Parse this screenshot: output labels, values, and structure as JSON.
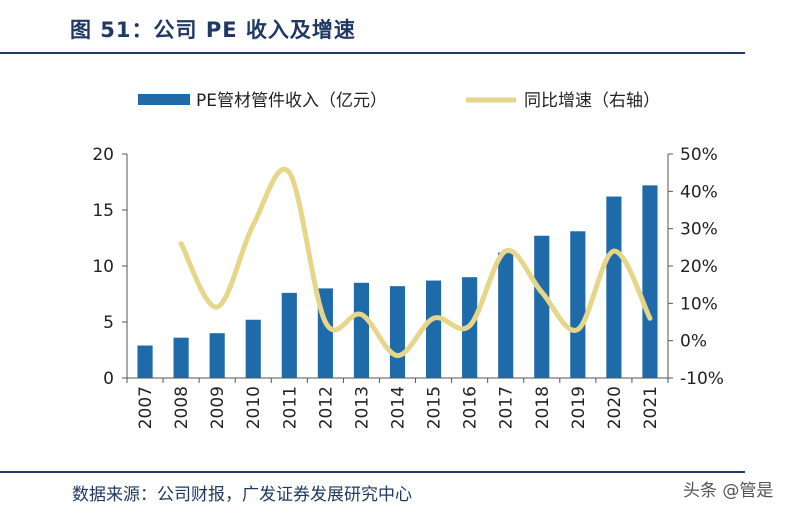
{
  "title": "图 51：公司 PE 收入及增速",
  "source": "数据来源：公司财报，广发证券发展研究中心",
  "watermark": "头条 @管是",
  "colors": {
    "bar": "#1f6aa8",
    "line": "#e5d68a",
    "header": "#1f3864"
  },
  "chart_data": {
    "type": "bar",
    "categories": [
      "2007",
      "2008",
      "2009",
      "2010",
      "2011",
      "2012",
      "2013",
      "2014",
      "2015",
      "2016",
      "2017",
      "2018",
      "2019",
      "2020",
      "2021"
    ],
    "series": [
      {
        "name": "PE管材管件收入（亿元）",
        "type": "bar",
        "axis": "left",
        "values": [
          2.9,
          3.6,
          4.0,
          5.2,
          7.6,
          8.0,
          8.5,
          8.2,
          8.7,
          9.0,
          11.2,
          12.7,
          13.1,
          16.2,
          17.2
        ]
      },
      {
        "name": "同比增速（右轴）",
        "type": "line",
        "axis": "right",
        "values": [
          null,
          26,
          9,
          31,
          45,
          5,
          7,
          -4,
          6,
          4,
          24,
          13,
          3,
          24,
          6
        ]
      }
    ],
    "y_left": {
      "min": 0,
      "max": 20,
      "ticks": [
        "0",
        "5",
        "10",
        "15",
        "20"
      ]
    },
    "y_right": {
      "min": -10,
      "max": 50,
      "ticks": [
        "-10%",
        "0%",
        "10%",
        "20%",
        "30%",
        "40%",
        "50%"
      ]
    },
    "grid": false,
    "legend": "top"
  }
}
